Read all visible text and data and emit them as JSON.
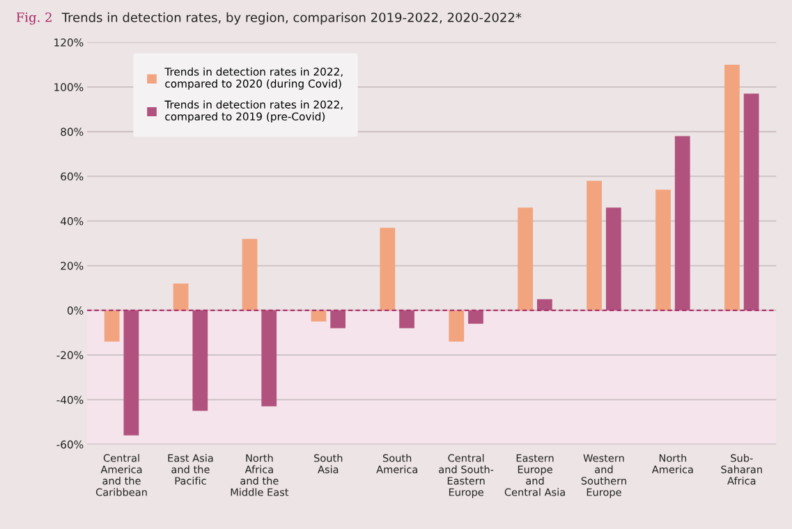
{
  "chart_data": {
    "type": "bar",
    "title": "Fig. 2",
    "subtitle": "Trends in detection rates, by region, comparison 2019-2022, 2020-2022*",
    "categories": [
      "Central\nAmerica\nand the\nCaribbean",
      "East Asia\nand the\nPacific",
      "North\nAfrica\nand the\nMiddle East",
      "South\nAsia",
      "South\nAmerica",
      "Central\nand South-\nEastern\nEurope",
      "Eastern\nEurope\nand\nCentral Asia",
      "Western\nand\nSouthern\nEurope",
      "North\nAmerica",
      "Sub-\nSaharan\nAfrica"
    ],
    "series": [
      {
        "name": "Trends in detection rates in 2022,\ncompared to 2020 (during Covid)",
        "color": "#f2a47e",
        "values": [
          -14,
          12,
          32,
          -5,
          37,
          -14,
          46,
          58,
          54,
          110
        ]
      },
      {
        "name": "Trends in detection rates in 2022,\ncompared to 2019 (pre-Covid)",
        "color": "#b1527e",
        "values": [
          -56,
          -45,
          -43,
          -8,
          -8,
          -6,
          5,
          46,
          78,
          97
        ]
      }
    ],
    "ylim": [
      -60,
      120
    ],
    "yticks": [
      {
        "value": -60,
        "label": "-60%"
      },
      {
        "value": -40,
        "label": "-40%"
      },
      {
        "value": -20,
        "label": "-20%"
      },
      {
        "value": 0,
        "label": "0%"
      },
      {
        "value": 20,
        "label": "20%"
      },
      {
        "value": 40,
        "label": "40%"
      },
      {
        "value": 60,
        "label": "60%"
      },
      {
        "value": 80,
        "label": "80%"
      },
      {
        "value": 100,
        "label": "100%"
      },
      {
        "value": 120,
        "label": "120%"
      }
    ],
    "grid": "y",
    "legend": "top left",
    "ref_lines": [
      {
        "axis": "y",
        "value": 0,
        "color": "#b1336e",
        "line_style": "dashed"
      }
    ],
    "bands": [
      {
        "axis": "y",
        "from": -60,
        "to": 0,
        "color": "#f5e4ec"
      }
    ]
  }
}
